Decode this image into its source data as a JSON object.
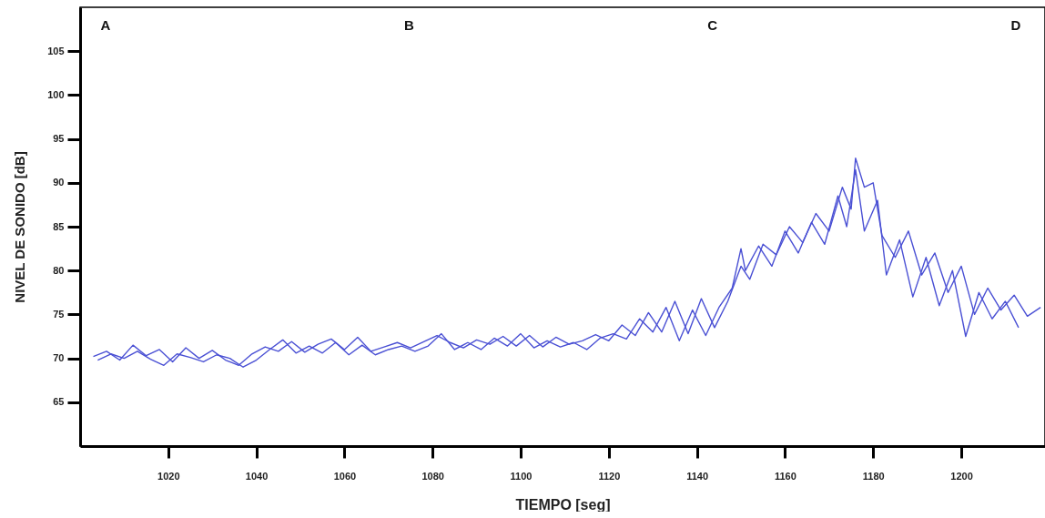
{
  "chart_data": {
    "type": "line",
    "xlabel": "TIEMPO [seg]",
    "ylabel": "NIVEL DE SONIDO [dB]",
    "xlim": [
      1000,
      1219
    ],
    "ylim": [
      60,
      110
    ],
    "xticks": [
      1020,
      1040,
      1060,
      1080,
      1100,
      1120,
      1140,
      1160,
      1180,
      1200
    ],
    "yticks": [
      65,
      70,
      75,
      80,
      85,
      90,
      95,
      100,
      105
    ],
    "grid": false,
    "annotations": [
      "A",
      "B",
      "C",
      "D"
    ],
    "series": [
      {
        "color": "#4a50d4",
        "x": [
          1003,
          1006,
          1009,
          1012,
          1015,
          1018,
          1021,
          1024,
          1027,
          1030,
          1033,
          1036,
          1039,
          1042,
          1045,
          1048,
          1051,
          1054,
          1057,
          1060,
          1063,
          1066,
          1069,
          1072,
          1075,
          1078,
          1081,
          1084,
          1087,
          1090,
          1093,
          1096,
          1099,
          1102,
          1105,
          1108,
          1111,
          1114,
          1117,
          1120,
          1123,
          1126,
          1129,
          1132,
          1135,
          1138,
          1141,
          1144,
          1147,
          1150,
          1152,
          1155,
          1158,
          1161,
          1164,
          1167,
          1170,
          1173,
          1175,
          1176,
          1178,
          1180,
          1182,
          1185,
          1188,
          1191,
          1194,
          1197,
          1200,
          1203,
          1206,
          1209,
          1212,
          1215,
          1218
        ],
        "values": [
          70.2,
          70.8,
          69.8,
          71.5,
          70.3,
          71.0,
          69.6,
          71.2,
          70.0,
          70.9,
          69.8,
          69.2,
          70.5,
          71.3,
          70.8,
          71.9,
          70.7,
          71.6,
          72.2,
          71.0,
          72.4,
          70.8,
          71.3,
          71.8,
          71.2,
          71.9,
          72.6,
          71.8,
          71.2,
          72.1,
          71.6,
          72.5,
          71.4,
          72.6,
          71.3,
          72.4,
          71.6,
          72.0,
          72.7,
          72.0,
          73.8,
          72.6,
          75.2,
          73.0,
          76.5,
          72.8,
          76.8,
          73.5,
          76.5,
          80.5,
          79.0,
          83.0,
          81.8,
          85.0,
          83.2,
          86.5,
          84.5,
          89.5,
          87.0,
          92.8,
          89.5,
          90.0,
          84.0,
          81.5,
          84.5,
          79.5,
          82.0,
          77.5,
          80.5,
          75.0,
          78.0,
          75.5,
          77.2,
          74.8,
          75.8
        ]
      },
      {
        "color": "#4a50d4",
        "x": [
          1004,
          1007,
          1010,
          1013,
          1016,
          1019,
          1022,
          1025,
          1028,
          1031,
          1034,
          1037,
          1040,
          1043,
          1046,
          1049,
          1052,
          1055,
          1058,
          1061,
          1064,
          1067,
          1070,
          1073,
          1076,
          1079,
          1082,
          1085,
          1088,
          1091,
          1094,
          1097,
          1100,
          1103,
          1106,
          1109,
          1112,
          1115,
          1118,
          1121,
          1124,
          1127,
          1130,
          1133,
          1136,
          1139,
          1142,
          1145,
          1148,
          1150,
          1151,
          1154,
          1157,
          1160,
          1163,
          1166,
          1169,
          1172,
          1174,
          1176,
          1178,
          1181,
          1183,
          1186,
          1189,
          1192,
          1195,
          1198,
          1201,
          1204,
          1207,
          1210,
          1213
        ],
        "values": [
          69.8,
          70.5,
          70.0,
          70.8,
          69.9,
          69.2,
          70.5,
          70.1,
          69.6,
          70.4,
          70.0,
          69.0,
          69.8,
          71.0,
          72.1,
          70.6,
          71.4,
          70.6,
          71.8,
          70.4,
          71.5,
          70.4,
          71.0,
          71.4,
          70.8,
          71.4,
          72.8,
          71.0,
          71.8,
          71.0,
          72.3,
          71.4,
          72.8,
          71.2,
          72.0,
          71.3,
          71.8,
          71.0,
          72.3,
          72.8,
          72.2,
          74.5,
          73.0,
          75.8,
          72.0,
          75.5,
          72.6,
          75.8,
          78.0,
          82.5,
          80.0,
          82.8,
          80.5,
          84.5,
          82.0,
          85.5,
          83.0,
          88.5,
          85.0,
          91.5,
          84.5,
          88.0,
          79.5,
          83.5,
          77.0,
          81.5,
          76.0,
          80.0,
          72.5,
          77.5,
          74.5,
          76.5,
          73.5
        ]
      }
    ]
  }
}
